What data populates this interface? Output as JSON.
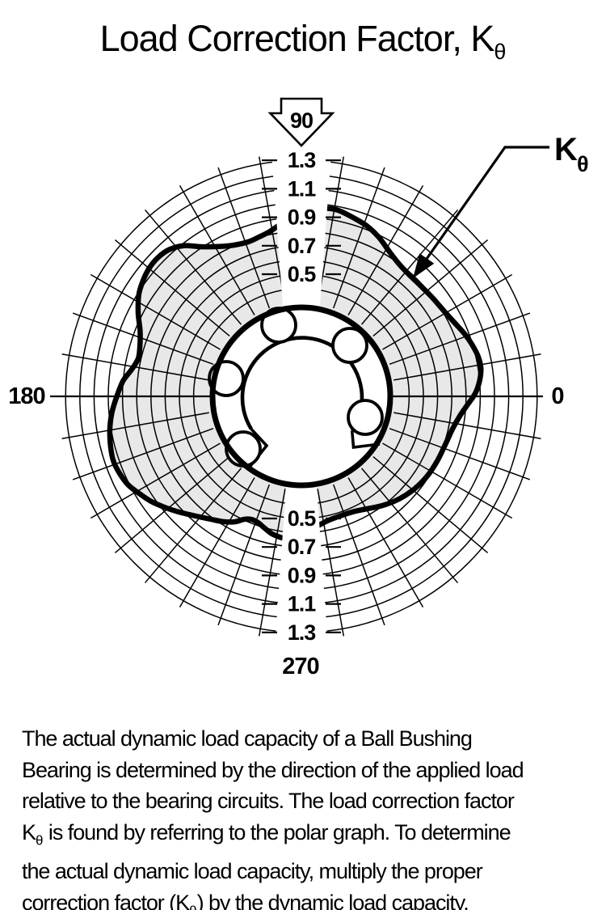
{
  "title": {
    "base": "Load Correction Factor, K",
    "sub": "θ"
  },
  "callout": {
    "base": "K",
    "sub": "θ"
  },
  "polar_axis": {
    "angle_labels": {
      "right": "0",
      "top": "90",
      "left": "180",
      "bottom": "270"
    },
    "tick_labels_top": [
      "1.3",
      "1.1",
      "0.9",
      "0.7",
      "0.5"
    ],
    "tick_labels_bottom": [
      "0.5",
      "0.7",
      "0.9",
      "1.1",
      "1.3"
    ]
  },
  "chart_data": {
    "type": "polar_line",
    "title": "Load Correction Factor, Kθ",
    "radial_axis": {
      "min": 0.4,
      "max": 1.3,
      "gridline_step": 0.1,
      "labeled_ticks": [
        0.5,
        0.7,
        0.9,
        1.1,
        1.3
      ]
    },
    "angular_axis": {
      "gridline_step_deg": 10,
      "labels_deg": [
        0,
        90,
        180,
        270
      ]
    },
    "label_gaps_deg": [
      [
        86,
        96
      ],
      [
        262,
        274
      ]
    ],
    "fill_between": "bearing-outline-and-curve",
    "colors": {
      "line": "#000000",
      "fill_gray": "#e8e8e8",
      "background": "#ffffff"
    },
    "series": [
      {
        "name": "Kθ",
        "segments": [
          [
            [
              273,
              0.59
            ],
            [
              277,
              0.56
            ],
            [
              282,
              0.535
            ],
            [
              288,
              0.525
            ],
            [
              294,
              0.53
            ],
            [
              300,
              0.555
            ],
            [
              307,
              0.6
            ],
            [
              314,
              0.64
            ],
            [
              321,
              0.67
            ],
            [
              328,
              0.69
            ],
            [
              335,
              0.7
            ],
            [
              342,
              0.71
            ],
            [
              348,
              0.73
            ],
            [
              353,
              0.765
            ],
            [
              357,
              0.81
            ],
            [
              1,
              0.865
            ],
            [
              5,
              0.9
            ],
            [
              9,
              0.92
            ],
            [
              13,
              0.915
            ],
            [
              17,
              0.895
            ],
            [
              21,
              0.87
            ],
            [
              26,
              0.835
            ],
            [
              31,
              0.81
            ],
            [
              37,
              0.795
            ],
            [
              43,
              0.785
            ],
            [
              49,
              0.785
            ],
            [
              54,
              0.8
            ],
            [
              59,
              0.835
            ],
            [
              64,
              0.885
            ],
            [
              69,
              0.925
            ],
            [
              74,
              0.95
            ],
            [
              79,
              0.975
            ],
            [
              83,
              0.975
            ]
          ],
          [
            [
              97,
              0.86
            ],
            [
              101,
              0.82
            ],
            [
              105,
              0.8
            ],
            [
              109,
              0.79
            ],
            [
              114,
              0.805
            ],
            [
              119,
              0.845
            ],
            [
              124,
              0.91
            ],
            [
              128,
              0.985
            ],
            [
              132,
              1.03
            ],
            [
              136,
              1.045
            ],
            [
              140,
              1.04
            ],
            [
              144,
              1.02
            ],
            [
              148,
              0.99
            ],
            [
              153,
              0.93
            ],
            [
              158,
              0.865
            ],
            [
              163,
              0.83
            ],
            [
              167,
              0.82
            ],
            [
              171,
              0.85
            ],
            [
              175,
              0.9
            ],
            [
              180,
              0.94
            ],
            [
              185,
              0.98
            ],
            [
              190,
              1.01
            ],
            [
              195,
              1.03
            ],
            [
              199,
              1.04
            ],
            [
              203,
              1.03
            ],
            [
              207,
              1.01
            ],
            [
              211,
              0.97
            ],
            [
              215,
              0.93
            ],
            [
              219,
              0.88
            ],
            [
              223,
              0.83
            ],
            [
              228,
              0.77
            ],
            [
              233,
              0.72
            ],
            [
              238,
              0.68
            ],
            [
              242,
              0.64
            ],
            [
              245,
              0.595
            ],
            [
              248,
              0.575
            ],
            [
              251,
              0.58
            ],
            [
              254,
              0.6
            ],
            [
              258,
              0.63
            ],
            [
              262,
              0.645
            ]
          ]
        ]
      }
    ]
  },
  "bearing": {
    "description": "open-type ball bushing cross-section",
    "ball_count": 5,
    "ball_angles_deg": [
      108,
      46,
      167,
      -17,
      222
    ]
  },
  "body_text": {
    "k_symbol": {
      "base": "K",
      "sub": "θ"
    },
    "lines": [
      [
        {
          "t": "The actual dynamic load capacity of a Ball Bushing"
        }
      ],
      [
        {
          "t": "Bearing is determined by the direction of the applied load"
        }
      ],
      [
        {
          "t": "relative to the bearing circuits. The load correction factor"
        }
      ],
      [
        {
          "k": true
        },
        {
          "t": " is found by referring to the polar graph. To determine"
        }
      ],
      [
        {
          "t": "the actual dynamic load capacity, multiply the proper"
        }
      ],
      [
        {
          "t": "correction factor ("
        },
        {
          "k": true
        },
        {
          "t": ") by the dynamic load capacity."
        }
      ]
    ]
  }
}
